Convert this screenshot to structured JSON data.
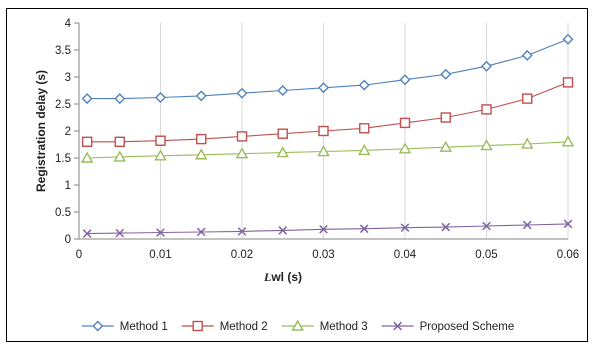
{
  "chart_data": {
    "type": "line",
    "title": "",
    "xlabel_italic": "L",
    "xlabel_rest": "wl (s)",
    "ylabel": "Registration delay (s)",
    "xlim": [
      0,
      0.06
    ],
    "ylim": [
      0,
      4
    ],
    "xticks": [
      0,
      0.01,
      0.02,
      0.03,
      0.04,
      0.05,
      0.06
    ],
    "xtick_labels": [
      "0",
      "0.01",
      "0.02",
      "0.03",
      "0.04",
      "0.05",
      "0.06"
    ],
    "yticks": [
      0,
      0.5,
      1,
      1.5,
      2,
      2.5,
      3,
      3.5,
      4
    ],
    "ytick_labels": [
      "0",
      "0.5",
      "1",
      "1.5",
      "2",
      "2.5",
      "3",
      "3.5",
      "4"
    ],
    "grid": "vertical",
    "legend_position": "bottom",
    "x": [
      0.001,
      0.005,
      0.01,
      0.015,
      0.02,
      0.025,
      0.03,
      0.035,
      0.04,
      0.045,
      0.05,
      0.055,
      0.06
    ],
    "series": [
      {
        "name": "Method 1",
        "marker": "diamond",
        "color": "#4f81bd",
        "values": [
          2.6,
          2.6,
          2.62,
          2.65,
          2.7,
          2.75,
          2.8,
          2.85,
          2.95,
          3.05,
          3.2,
          3.4,
          3.7
        ]
      },
      {
        "name": "Method 2",
        "marker": "square",
        "color": "#c0504d",
        "values": [
          1.8,
          1.8,
          1.82,
          1.85,
          1.9,
          1.95,
          2.0,
          2.05,
          2.15,
          2.25,
          2.4,
          2.6,
          2.9
        ]
      },
      {
        "name": "Method 3",
        "marker": "triangle",
        "color": "#9bbb59",
        "values": [
          1.5,
          1.52,
          1.54,
          1.56,
          1.58,
          1.6,
          1.62,
          1.64,
          1.67,
          1.7,
          1.73,
          1.76,
          1.8
        ]
      },
      {
        "name": "Proposed Scheme",
        "marker": "x",
        "color": "#8064a2",
        "values": [
          0.1,
          0.11,
          0.12,
          0.13,
          0.14,
          0.16,
          0.18,
          0.19,
          0.21,
          0.22,
          0.24,
          0.26,
          0.28
        ]
      }
    ]
  }
}
